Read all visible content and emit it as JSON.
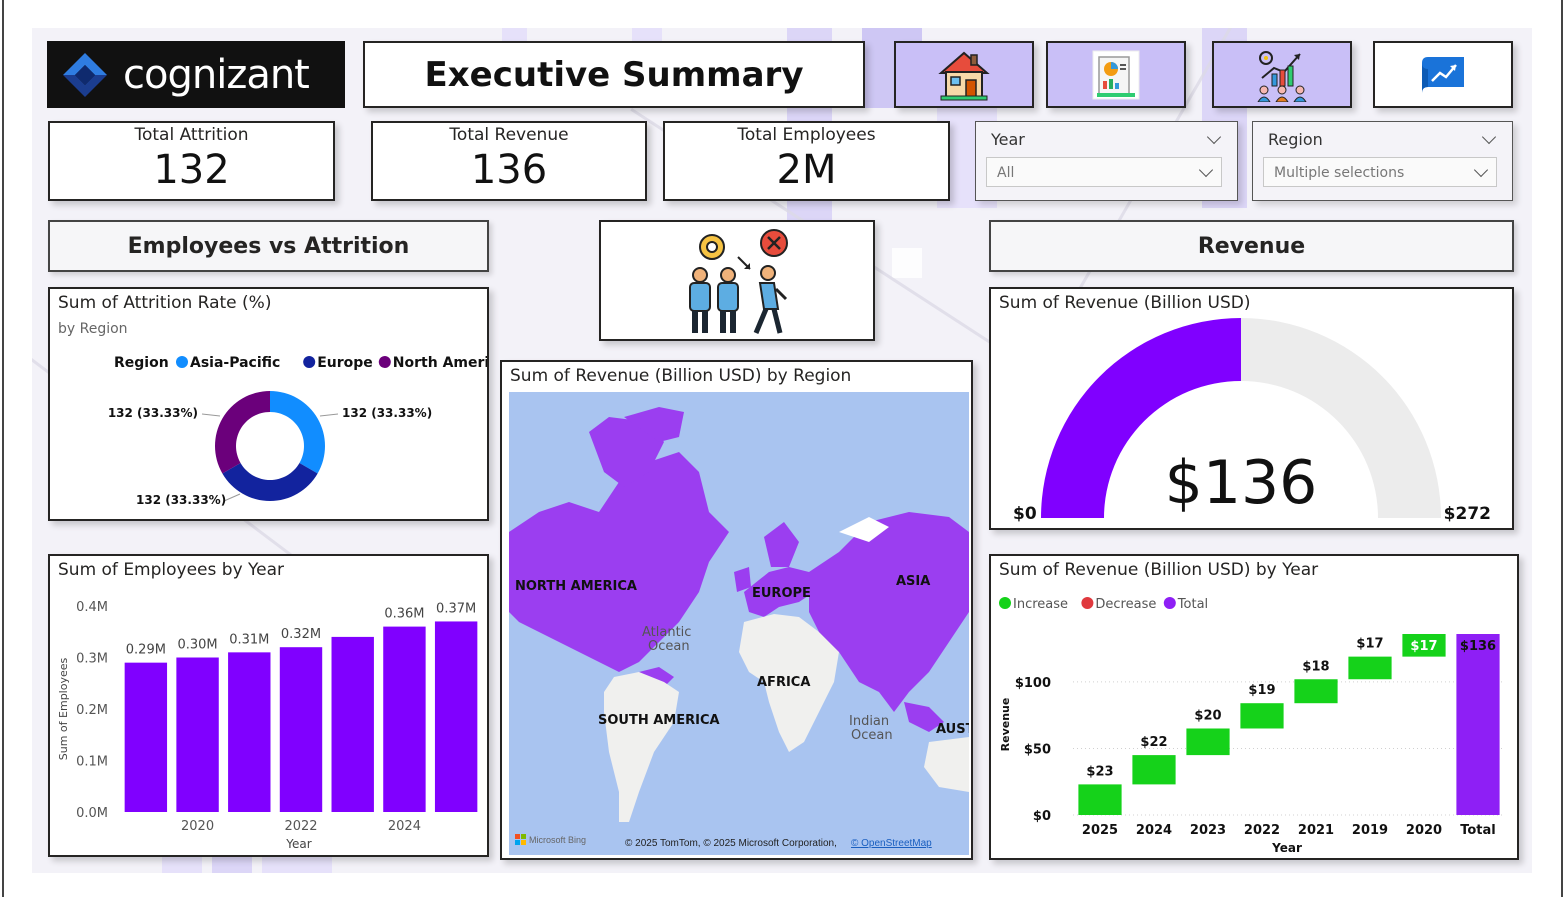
{
  "brand": {
    "logo_text": "cognizant"
  },
  "header": {
    "title": "Executive Summary"
  },
  "nav": [
    {
      "name": "home-icon",
      "label": "Home"
    },
    {
      "name": "report-icon",
      "label": "Report"
    },
    {
      "name": "analytics-icon",
      "label": "Analytics"
    },
    {
      "name": "trend-icon",
      "label": "Trend"
    }
  ],
  "kpis": {
    "attrition": {
      "label": "Total Attrition",
      "value": "132"
    },
    "revenue": {
      "label": "Total Revenue",
      "value": "136"
    },
    "employees": {
      "label": "Total Employees",
      "value": "2M"
    }
  },
  "slicers": {
    "year": {
      "label": "Year",
      "value": "All"
    },
    "region": {
      "label": "Region",
      "value": "Multiple selections"
    }
  },
  "sections": {
    "employees_vs_attrition": "Employees vs Attrition",
    "revenue": "Revenue"
  },
  "donut": {
    "title": "Sum of Attrition Rate (%)",
    "subtitle": "by Region",
    "legend_title": "Region",
    "labels": [
      "132 (33.33%)",
      "132 (33.33%)",
      "132 (33.33%)"
    ]
  },
  "map": {
    "title": "Sum of Revenue (Billion USD) by Region",
    "labels": {
      "north_america": "NORTH AMERICA",
      "europe": "EUROPE",
      "asia": "ASIA",
      "africa": "AFRICA",
      "south_america": "SOUTH AMERICA",
      "australia": "AUST",
      "atlantic": "Atlantic",
      "atlantic2": "Ocean",
      "indian": "Indian",
      "indian2": "Ocean"
    },
    "attribution": "© 2025 TomTom, © 2025 Microsoft Corporation,",
    "attribution_link": "© OpenStreetMap",
    "bing": "Microsoft Bing"
  },
  "gauge": {
    "title": "Sum of Revenue (Billion USD)",
    "value_label": "$136",
    "min_label": "$0",
    "max_label": "$272"
  },
  "bar_chart": {
    "title": "Sum of Employees by Year",
    "xlabel": "Year",
    "ylabel": "Sum of Employees",
    "yticks": [
      "0.0M",
      "0.1M",
      "0.2M",
      "0.3M",
      "0.4M"
    ],
    "xticks": [
      "2020",
      "2022",
      "2024"
    ]
  },
  "waterfall": {
    "title": "Sum of Revenue (Billion USD) by Year",
    "xlabel": "Year",
    "ylabel": "Revenue",
    "yticks": [
      "$0",
      "$50",
      "$100"
    ],
    "legend": [
      "Increase",
      "Decrease",
      "Total"
    ]
  },
  "colors": {
    "purple": "#8000ff",
    "asia_pacific": "#118dff",
    "europe": "#12239e",
    "north_america": "#6b007b",
    "increase": "#15d21a",
    "decrease": "#e0393e",
    "total": "#8e1ff5",
    "map_ocean": "#a9c4f0",
    "map_land": "#f0f0ee"
  },
  "chart_data": [
    {
      "type": "pie",
      "title": "Sum of Attrition Rate (%)",
      "subtitle": "by Region",
      "categories": [
        "Asia-Pacific",
        "Europe",
        "North America"
      ],
      "values": [
        132,
        132,
        132
      ],
      "legend": "top"
    },
    {
      "type": "bar",
      "title": "Sum of Employees by Year",
      "xlabel": "Year",
      "ylabel": "Sum of Employees",
      "categories": [
        "2019",
        "2020",
        "2021",
        "2022",
        "2023",
        "2024",
        "2025"
      ],
      "values": [
        0.29,
        0.3,
        0.31,
        0.32,
        0.34,
        0.36,
        0.37
      ],
      "data_labels": [
        "0.29M",
        "0.30M",
        "0.31M",
        "0.32M",
        "",
        "0.36M",
        "0.37M"
      ],
      "ylim": [
        0,
        0.4
      ],
      "grid": false
    },
    {
      "type": "bar",
      "subtype": "waterfall",
      "title": "Sum of Revenue (Billion USD) by Year",
      "xlabel": "Year",
      "ylabel": "Revenue",
      "categories": [
        "2025",
        "2024",
        "2023",
        "2022",
        "2021",
        "2019",
        "2020",
        "Total"
      ],
      "values": [
        23,
        22,
        20,
        19,
        18,
        17,
        17,
        136
      ],
      "data_labels": [
        "$23",
        "$22",
        "$20",
        "$19",
        "$18",
        "$17",
        "$17",
        "$136"
      ],
      "kinds": [
        "increase",
        "increase",
        "increase",
        "increase",
        "increase",
        "increase",
        "increase",
        "total"
      ],
      "ylim": [
        0,
        136
      ],
      "legend": "top-left"
    }
  ]
}
